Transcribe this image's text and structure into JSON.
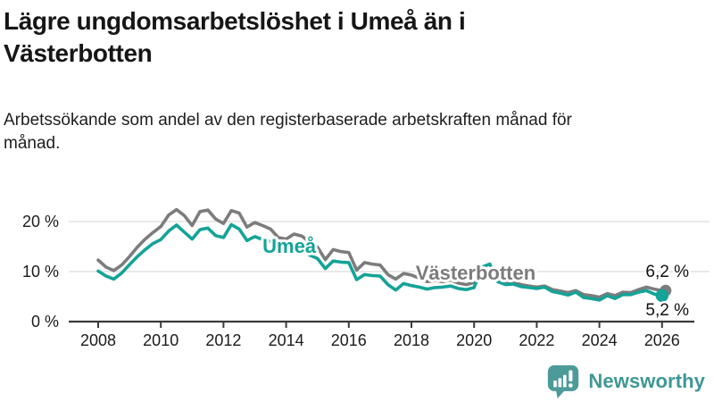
{
  "chart_data": {
    "type": "line",
    "title": "Lägre ungdomsarbetslöshet i Umeå än i Västerbotten",
    "subtitle": "Arbetssökande som andel av den registerbaserade arbetskraften månad för månad.",
    "x_axis": {
      "start": 2008,
      "step": 0.25,
      "tick_values": [
        2008,
        2010,
        2012,
        2014,
        2016,
        2018,
        2020,
        2022,
        2024,
        2026
      ],
      "tick_labels": [
        "2008",
        "2010",
        "2012",
        "2014",
        "2016",
        "2018",
        "2020",
        "2022",
        "2024",
        "2026"
      ]
    },
    "y_axis": {
      "unit": "%",
      "ticks": [
        {
          "value": 0,
          "label": "0 %",
          "grid": false
        },
        {
          "value": 10,
          "label": "10 %",
          "grid": true
        },
        {
          "value": 20,
          "label": "20 %",
          "grid": true
        }
      ],
      "ylim": [
        0,
        24
      ]
    },
    "layout": {
      "grid_color": "#e2e2e2",
      "axis_color": "#3a3a3a",
      "text_color": "#1b1b1b",
      "legend": "inline-series-labels"
    },
    "series": [
      {
        "name": "Västerbotten",
        "color": "#7c7c7c",
        "end_label": "6,2 %",
        "end_value": 6.2,
        "label_at": {
          "x": 2020.05,
          "y": 9.8
        },
        "end_label_at_value": 10.2,
        "values": [
          12.3,
          10.9,
          10.2,
          11.3,
          13.0,
          14.9,
          16.5,
          17.8,
          19.0,
          21.3,
          22.4,
          21.2,
          19.2,
          22.0,
          22.3,
          20.5,
          19.6,
          22.2,
          21.7,
          18.9,
          19.8,
          19.2,
          18.5,
          16.8,
          16.5,
          17.5,
          17.1,
          15.9,
          14.9,
          12.4,
          14.4,
          14.0,
          13.8,
          10.3,
          11.8,
          11.5,
          11.3,
          9.4,
          8.5,
          9.6,
          9.3,
          8.7,
          8.0,
          8.2,
          8.0,
          8.3,
          7.7,
          7.4,
          7.8,
          8.8,
          9.0,
          8.2,
          7.8,
          7.9,
          7.4,
          7.1,
          6.9,
          7.1,
          6.4,
          6.1,
          5.8,
          6.2,
          5.4,
          5.2,
          4.9,
          5.6,
          5.2,
          5.9,
          5.8,
          6.4,
          6.9,
          6.5,
          6.2
        ]
      },
      {
        "name": "Umeå",
        "color": "#14a398",
        "end_label": "5,2 %",
        "end_value": 5.2,
        "label_at": {
          "x": 2014.1,
          "y": 15.2
        },
        "end_label_at_value": 2.5,
        "values": [
          10.1,
          9.1,
          8.5,
          9.7,
          11.4,
          13.0,
          14.4,
          15.6,
          16.4,
          18.1,
          19.3,
          17.9,
          16.5,
          18.4,
          18.7,
          17.2,
          16.8,
          19.4,
          18.5,
          16.2,
          17.0,
          16.4,
          16.0,
          14.5,
          13.9,
          15.0,
          14.4,
          13.3,
          12.6,
          10.6,
          12.1,
          11.9,
          11.8,
          8.4,
          9.4,
          9.2,
          9.1,
          7.4,
          6.3,
          7.6,
          7.2,
          6.9,
          6.5,
          6.8,
          6.9,
          7.1,
          6.6,
          6.4,
          6.8,
          10.9,
          11.5,
          8.0,
          7.4,
          7.5,
          7.0,
          6.8,
          6.6,
          6.9,
          6.0,
          5.7,
          5.3,
          5.9,
          4.8,
          4.6,
          4.3,
          5.2,
          4.6,
          5.4,
          5.4,
          5.9,
          6.2,
          5.5,
          5.2
        ]
      }
    ]
  },
  "footer": {
    "brand": "Newsworthy",
    "brand_color": "#3f9795",
    "logo_color": "#4d9b99",
    "logo_icon": "speech-bubble-bar-chart-exclamation"
  }
}
